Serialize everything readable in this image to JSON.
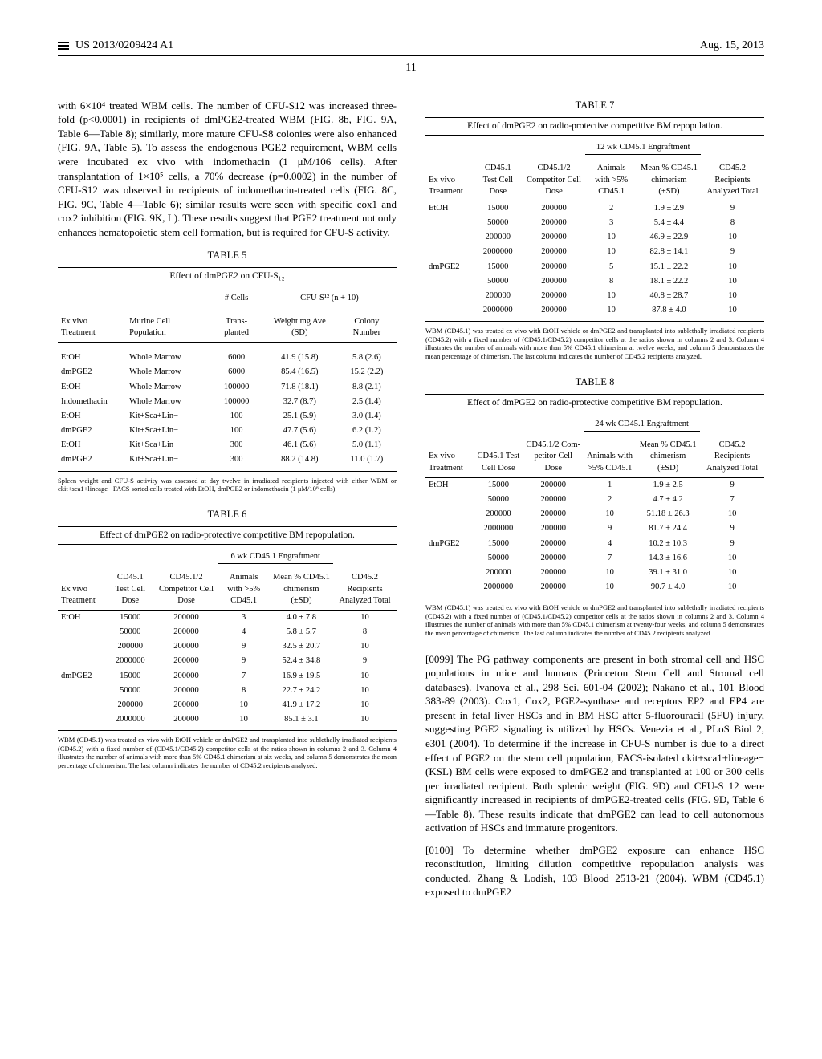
{
  "header": {
    "left_icon": "burger",
    "doc_id": "US 2013/0209424 A1",
    "date": "Aug. 15, 2013"
  },
  "page_number": "11",
  "left_col": {
    "intro_para": "with 6×10⁴ treated WBM cells. The number of CFU-S12 was increased three-fold (p<0.0001) in recipients of dmPGE2-treated WBM (FIG. 8b, FIG. 9A, Table 6—Table 8); similarly, more mature CFU-S8 colonies were also enhanced (FIG. 9A, Table 5). To assess the endogenous PGE2 requirement, WBM cells were incubated ex vivo with indomethacin (1 μM/106 cells). After transplantation of 1×10⁵ cells, a 70% decrease (p=0.0002) in the number of CFU-S12 was observed in recipients of indomethacin-treated cells (FIG. 8C, FIG. 9C, Table 4—Table 6); similar results were seen with specific cox1 and cox2 inhibition (FIG. 9K, L). These results suggest that PGE2 treatment not only enhances hematopoietic stem cell formation, but is required for CFU-S activity.",
    "table5": {
      "label": "TABLE 5",
      "title": "Effect of dmPGE2 on CFU-S₁₂",
      "col_group_left": "# Cells",
      "col_group_right": "CFU-S¹² (n + 10)",
      "headers": [
        "Ex vivo Treatment",
        "Murine Cell Population",
        "Trans-planted",
        "Weight mg Ave (SD)",
        "Colony Number"
      ],
      "rows": [
        [
          "EtOH",
          "Whole Marrow",
          "6000",
          "41.9 (15.8)",
          "5.8 (2.6)"
        ],
        [
          "dmPGE2",
          "Whole Marrow",
          "6000",
          "85.4 (16.5)",
          "15.2 (2.2)"
        ],
        [
          "EtOH",
          "Whole Marrow",
          "100000",
          "71.8 (18.1)",
          "8.8 (2.1)"
        ],
        [
          "Indomethacin",
          "Whole Marrow",
          "100000",
          "32.7 (8.7)",
          "2.5 (1.4)"
        ],
        [
          "EtOH",
          "Kit+Sca+Lin−",
          "100",
          "25.1 (5.9)",
          "3.0 (1.4)"
        ],
        [
          "dmPGE2",
          "Kit+Sca+Lin−",
          "100",
          "47.7 (5.6)",
          "6.2 (1.2)"
        ],
        [
          "EtOH",
          "Kit+Sca+Lin−",
          "300",
          "46.1 (5.6)",
          "5.0 (1.1)"
        ],
        [
          "dmPGE2",
          "Kit+Sca+Lin−",
          "300",
          "88.2 (14.8)",
          "11.0 (1.7)"
        ]
      ],
      "footnote": "Spleen weight and CFU-S activity was assessed at day twelve in irradiated recipients injected with either WBM or ckit+sca1+lineage− FACS sorted cells treated with EtOH, dmPGE2 or indomethacin (1 μM/10⁶ cells)."
    },
    "table6": {
      "label": "TABLE 6",
      "title": "Effect of dmPGE2 on radio-protective competitive BM repopulation.",
      "engraft_label": "6 wk CD45.1 Engraftment",
      "headers": [
        "Ex vivo Treatment",
        "CD45.1 Test Cell Dose",
        "CD45.1/2 Competitor Cell Dose",
        "Animals with >5% CD45.1",
        "Mean % CD45.1 chimerism (±SD)",
        "CD45.2 Recipients Analyzed Total"
      ],
      "rows": [
        [
          "EtOH",
          "15000",
          "200000",
          "3",
          "4.0 ± 7.8",
          "10"
        ],
        [
          "",
          "50000",
          "200000",
          "4",
          "5.8 ± 5.7",
          "8"
        ],
        [
          "",
          "200000",
          "200000",
          "9",
          "32.5 ± 20.7",
          "10"
        ],
        [
          "",
          "2000000",
          "200000",
          "9",
          "52.4 ± 34.8",
          "9"
        ],
        [
          "dmPGE2",
          "15000",
          "200000",
          "7",
          "16.9 ± 19.5",
          "10"
        ],
        [
          "",
          "50000",
          "200000",
          "8",
          "22.7 ± 24.2",
          "10"
        ],
        [
          "",
          "200000",
          "200000",
          "10",
          "41.9 ± 17.2",
          "10"
        ],
        [
          "",
          "2000000",
          "200000",
          "10",
          "85.1 ± 3.1",
          "10"
        ]
      ],
      "footnote": "WBM (CD45.1) was treated ex vivo with EtOH vehicle or dmPGE2 and transplanted into sublethally irradiated recipients (CD45.2) with a fixed number of (CD45.1/CD45.2) competitor cells at the ratios shown in columns 2 and 3. Column 4 illustrates the number of animals with more than 5% CD45.1 chimerism at six weeks, and column 5 demonstrates the mean percentage of chimerism. The last column indicates the number of CD45.2 recipients analyzed."
    }
  },
  "right_col": {
    "table7": {
      "label": "TABLE 7",
      "title": "Effect of dmPGE2 on radio-protective competitive BM repopulation.",
      "engraft_label": "12 wk CD45.1 Engraftment",
      "headers": [
        "Ex vivo Treatment",
        "CD45.1 Test Cell Dose",
        "CD45.1/2 Competitor Cell Dose",
        "Animals with >5% CD45.1",
        "Mean % CD45.1 chimerism (±SD)",
        "CD45.2 Recipients Analyzed Total"
      ],
      "rows": [
        [
          "EtOH",
          "15000",
          "200000",
          "2",
          "1.9 ± 2.9",
          "9"
        ],
        [
          "",
          "50000",
          "200000",
          "3",
          "5.4 ± 4.4",
          "8"
        ],
        [
          "",
          "200000",
          "200000",
          "10",
          "46.9 ± 22.9",
          "10"
        ],
        [
          "",
          "2000000",
          "200000",
          "10",
          "82.8 ± 14.1",
          "9"
        ],
        [
          "dmPGE2",
          "15000",
          "200000",
          "5",
          "15.1 ± 22.2",
          "10"
        ],
        [
          "",
          "50000",
          "200000",
          "8",
          "18.1 ± 22.2",
          "10"
        ],
        [
          "",
          "200000",
          "200000",
          "10",
          "40.8 ± 28.7",
          "10"
        ],
        [
          "",
          "2000000",
          "200000",
          "10",
          "87.8 ± 4.0",
          "10"
        ]
      ],
      "footnote": "WBM (CD45.1) was treated ex vivo with EtOH vehicle or dmPGE2 and transplanted into sublethally irradiated recipients (CD45.2) with a fixed number of (CD45.1/CD45.2) competitor cells at the ratios shown in columns 2 and 3. Column 4 illustrates the number of animals with more than 5% CD45.1 chimerism at twelve weeks, and column 5 demonstrates the mean percentage of chimerism. The last column indicates the number of CD45.2 recipients analyzed."
    },
    "table8": {
      "label": "TABLE 8",
      "title": "Effect of dmPGE2 on radio-protective competitive BM repopulation.",
      "engraft_label": "24 wk CD45.1 Engraftment",
      "headers": [
        "Ex vivo Treatment",
        "CD45.1 Test Cell Dose",
        "CD45.1/2 Com-petitor Cell Dose",
        "Animals with >5% CD45.1",
        "Mean % CD45.1 chimerism (±SD)",
        "CD45.2 Recipients Analyzed Total"
      ],
      "rows": [
        [
          "EtOH",
          "15000",
          "200000",
          "1",
          "1.9 ± 2.5",
          "9"
        ],
        [
          "",
          "50000",
          "200000",
          "2",
          "4.7 ± 4.2",
          "7"
        ],
        [
          "",
          "200000",
          "200000",
          "10",
          "51.18 ± 26.3",
          "10"
        ],
        [
          "",
          "2000000",
          "200000",
          "9",
          "81.7 ± 24.4",
          "9"
        ],
        [
          "dmPGE2",
          "15000",
          "200000",
          "4",
          "10.2 ± 10.3",
          "9"
        ],
        [
          "",
          "50000",
          "200000",
          "7",
          "14.3 ± 16.6",
          "10"
        ],
        [
          "",
          "200000",
          "200000",
          "10",
          "39.1 ± 31.0",
          "10"
        ],
        [
          "",
          "2000000",
          "200000",
          "10",
          "90.7 ± 4.0",
          "10"
        ]
      ],
      "footnote": "WBM (CD45.1) was treated ex vivo with EtOH vehicle or dmPGE2 and transplanted into sublethally irradiated recipients (CD45.2) with a fixed number of (CD45.1/CD45.2) competitor cells at the ratios shown in columns 2 and 3. Column 4 illustrates the number of animals with more than 5% CD45.1 chimerism at twenty-four weeks, and column 5 demonstrates the mean percentage of chimerism. The last column indicates the number of CD45.2 recipients analyzed."
    },
    "para_0099_label": "[0099]",
    "para_0099": "   The PG pathway components are present in both stromal cell and HSC populations in mice and humans (Princeton Stem Cell and Stromal cell databases). Ivanova et al., 298 Sci. 601-04 (2002); Nakano et al., 101 Blood 383-89 (2003). Cox1, Cox2, PGE2-synthase and receptors EP2 and EP4 are present in fetal liver HSCs and in BM HSC after 5-fluorouracil (5FU) injury, suggesting PGE2 signaling is utilized by HSCs. Venezia et al., PLoS Biol 2, e301 (2004). To determine if the increase in CFU-S number is due to a direct effect of PGE2 on the stem cell population, FACS-isolated ckit+sca1+lineage− (KSL) BM cells were exposed to dmPGE2 and transplanted at 100 or 300 cells per irradiated recipient. Both splenic weight (FIG. 9D) and CFU-S 12 were significantly increased in recipients of dmPGE2-treated cells (FIG. 9D, Table 6—Table 8). These results indicate that dmPGE2 can lead to cell autonomous activation of HSCs and immature progenitors.",
    "para_0100_label": "[0100]",
    "para_0100": "   To determine whether dmPGE2 exposure can enhance HSC reconstitution, limiting dilution competitive repopulation analysis was conducted. Zhang & Lodish, 103 Blood 2513-21 (2004). WBM (CD45.1) exposed to dmPGE2"
  }
}
